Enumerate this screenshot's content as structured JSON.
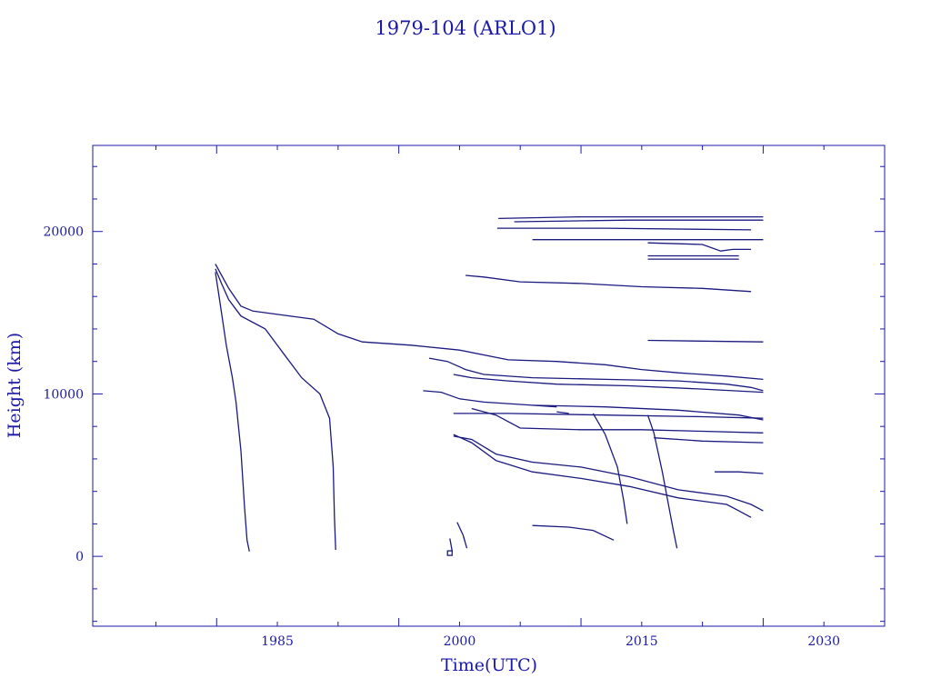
{
  "chart_data": {
    "type": "line",
    "title": "1979-104 (ARLO1)",
    "xlabel": "Time(UTC)",
    "ylabel": "Height (km)",
    "xlim": [
      1969.8,
      2035.0
    ],
    "ylim": [
      -4300,
      25300
    ],
    "x_ticks": [
      1985,
      2000,
      2015,
      2030
    ],
    "x_tick_labels": [
      "1985",
      "2000",
      "2015",
      "2030"
    ],
    "y_ticks": [
      0,
      10000,
      20000
    ],
    "y_tick_labels": [
      "0",
      "10000",
      "20000"
    ],
    "colors": {
      "axis": "#1a1aa6",
      "series": "#1a1a80"
    },
    "grid": false,
    "series": [
      {
        "x": [
          1979.9,
          1980.3,
          1980.8,
          1981.3,
          1981.6,
          1982.0,
          1982.3,
          1982.5,
          1982.7
        ],
        "y": [
          17500,
          15500,
          13000,
          11000,
          9500,
          6500,
          3000,
          1000,
          300
        ]
      },
      {
        "x": [
          1979.9,
          1980.4,
          1981.0,
          1982.0,
          1984.0,
          1985.5,
          1987.0,
          1988.5,
          1989.3,
          1989.6,
          1989.7,
          1989.8
        ],
        "y": [
          17700,
          16800,
          15800,
          14800,
          14000,
          12500,
          11000,
          10000,
          8500,
          5500,
          2500,
          400
        ]
      },
      {
        "x": [
          1979.9,
          1981.0,
          1982.0,
          1983.0,
          1985.0,
          1988.0,
          1990.0,
          1992.0,
          1996.0,
          2000.0,
          2004.0,
          2008.0,
          2012.0,
          2015.0,
          2018.0,
          2022.0,
          2025.0
        ],
        "y": [
          18000,
          16500,
          15400,
          15100,
          14900,
          14600,
          13700,
          13200,
          13000,
          12700,
          12100,
          12000,
          11800,
          11500,
          11300,
          11100,
          10900
        ]
      },
      {
        "x": [
          2003.2,
          2010.0,
          2020.0,
          2025.0
        ],
        "y": [
          20800,
          20900,
          20900,
          20900
        ]
      },
      {
        "x": [
          2004.5,
          2014.0,
          2025.0
        ],
        "y": [
          20600,
          20700,
          20700
        ]
      },
      {
        "x": [
          2003.1,
          2012.0,
          2024.0
        ],
        "y": [
          20200,
          20200,
          20100
        ]
      },
      {
        "x": [
          2006.0,
          2015.0,
          2025.0
        ],
        "y": [
          19500,
          19500,
          19500
        ]
      },
      {
        "x": [
          2015.5,
          2020.0,
          2021.5,
          2022.5,
          2024.0
        ],
        "y": [
          19300,
          19200,
          18800,
          18900,
          18900
        ]
      },
      {
        "x": [
          2015.5,
          2023.0
        ],
        "y": [
          18500,
          18500
        ]
      },
      {
        "x": [
          2015.5,
          2023.0
        ],
        "y": [
          18300,
          18300
        ]
      },
      {
        "x": [
          2000.5,
          2002.0,
          2005.0,
          2010.0,
          2015.0,
          2020.0,
          2024.0
        ],
        "y": [
          17300,
          17200,
          16900,
          16800,
          16600,
          16500,
          16300
        ]
      },
      {
        "x": [
          2015.5,
          2025.0
        ],
        "y": [
          13300,
          13200
        ]
      },
      {
        "x": [
          1997.5,
          1999.0,
          2000.5,
          2002.0,
          2006.0,
          2012.0,
          2018.0,
          2022.0,
          2024.0,
          2025.0
        ],
        "y": [
          12200,
          12000,
          11500,
          11200,
          11000,
          10900,
          10800,
          10600,
          10400,
          10200
        ]
      },
      {
        "x": [
          1999.5,
          2001.0,
          2004.0,
          2008.0,
          2014.0,
          2020.0,
          2025.0
        ],
        "y": [
          11200,
          11000,
          10800,
          10600,
          10500,
          10300,
          10100
        ]
      },
      {
        "x": [
          1997.0,
          1998.5,
          2000.0,
          2002.0,
          2006.0,
          2012.0,
          2018.0,
          2023.0,
          2025.0
        ],
        "y": [
          10200,
          10100,
          9700,
          9500,
          9300,
          9200,
          9000,
          8700,
          8400
        ]
      },
      {
        "x": [
          1999.5,
          2004.0,
          2012.0,
          2020.0,
          2025.0
        ],
        "y": [
          8800,
          8800,
          8700,
          8600,
          8500
        ]
      },
      {
        "x": [
          2001.0,
          2003.0,
          2005.0,
          2010.0,
          2015.0,
          2020.0,
          2025.0
        ],
        "y": [
          9100,
          8700,
          7900,
          7800,
          7800,
          7700,
          7600
        ]
      },
      {
        "x": [
          2016.0,
          2020.0,
          2025.0
        ],
        "y": [
          7300,
          7100,
          7000
        ]
      },
      {
        "x": [
          2006.0,
          2008.0
        ],
        "y": [
          9300,
          9200
        ]
      },
      {
        "x": [
          2008.0,
          2009.0
        ],
        "y": [
          8900,
          8800
        ]
      },
      {
        "x": [
          2011.0,
          2012.0,
          2013.0,
          2013.5,
          2013.8
        ],
        "y": [
          8800,
          7500,
          5500,
          3500,
          2000
        ]
      },
      {
        "x": [
          2015.5,
          2016.0,
          2016.7,
          2017.2,
          2017.6,
          2017.9
        ],
        "y": [
          8700,
          7600,
          5200,
          3200,
          1600,
          500
        ]
      },
      {
        "x": [
          1999.5,
          2001.0,
          2003.0,
          2006.0,
          2010.0,
          2014.0,
          2018.0,
          2022.0,
          2024.0,
          2025.0
        ],
        "y": [
          7400,
          7200,
          6300,
          5800,
          5500,
          4900,
          4100,
          3700,
          3200,
          2800
        ]
      },
      {
        "x": [
          1999.5,
          2001.0,
          2003.0,
          2006.0,
          2010.0,
          2014.0,
          2018.0,
          2022.0,
          2023.0,
          2024.0
        ],
        "y": [
          7500,
          7000,
          5900,
          5200,
          4800,
          4300,
          3600,
          3200,
          2800,
          2400
        ]
      },
      {
        "x": [
          2021.0,
          2023.0,
          2025.0
        ],
        "y": [
          5200,
          5200,
          5100
        ]
      },
      {
        "x": [
          2006.0,
          2009.0,
          2011.0,
          2012.7
        ],
        "y": [
          1900,
          1800,
          1600,
          1000
        ]
      },
      {
        "x": [
          1999.8,
          2000.3,
          2000.6
        ],
        "y": [
          2100,
          1300,
          500
        ]
      },
      {
        "x": [
          1999.2,
          1999.4
        ],
        "y": [
          1100,
          300
        ]
      }
    ],
    "marker": {
      "x": 1999.2,
      "y": 200
    }
  }
}
